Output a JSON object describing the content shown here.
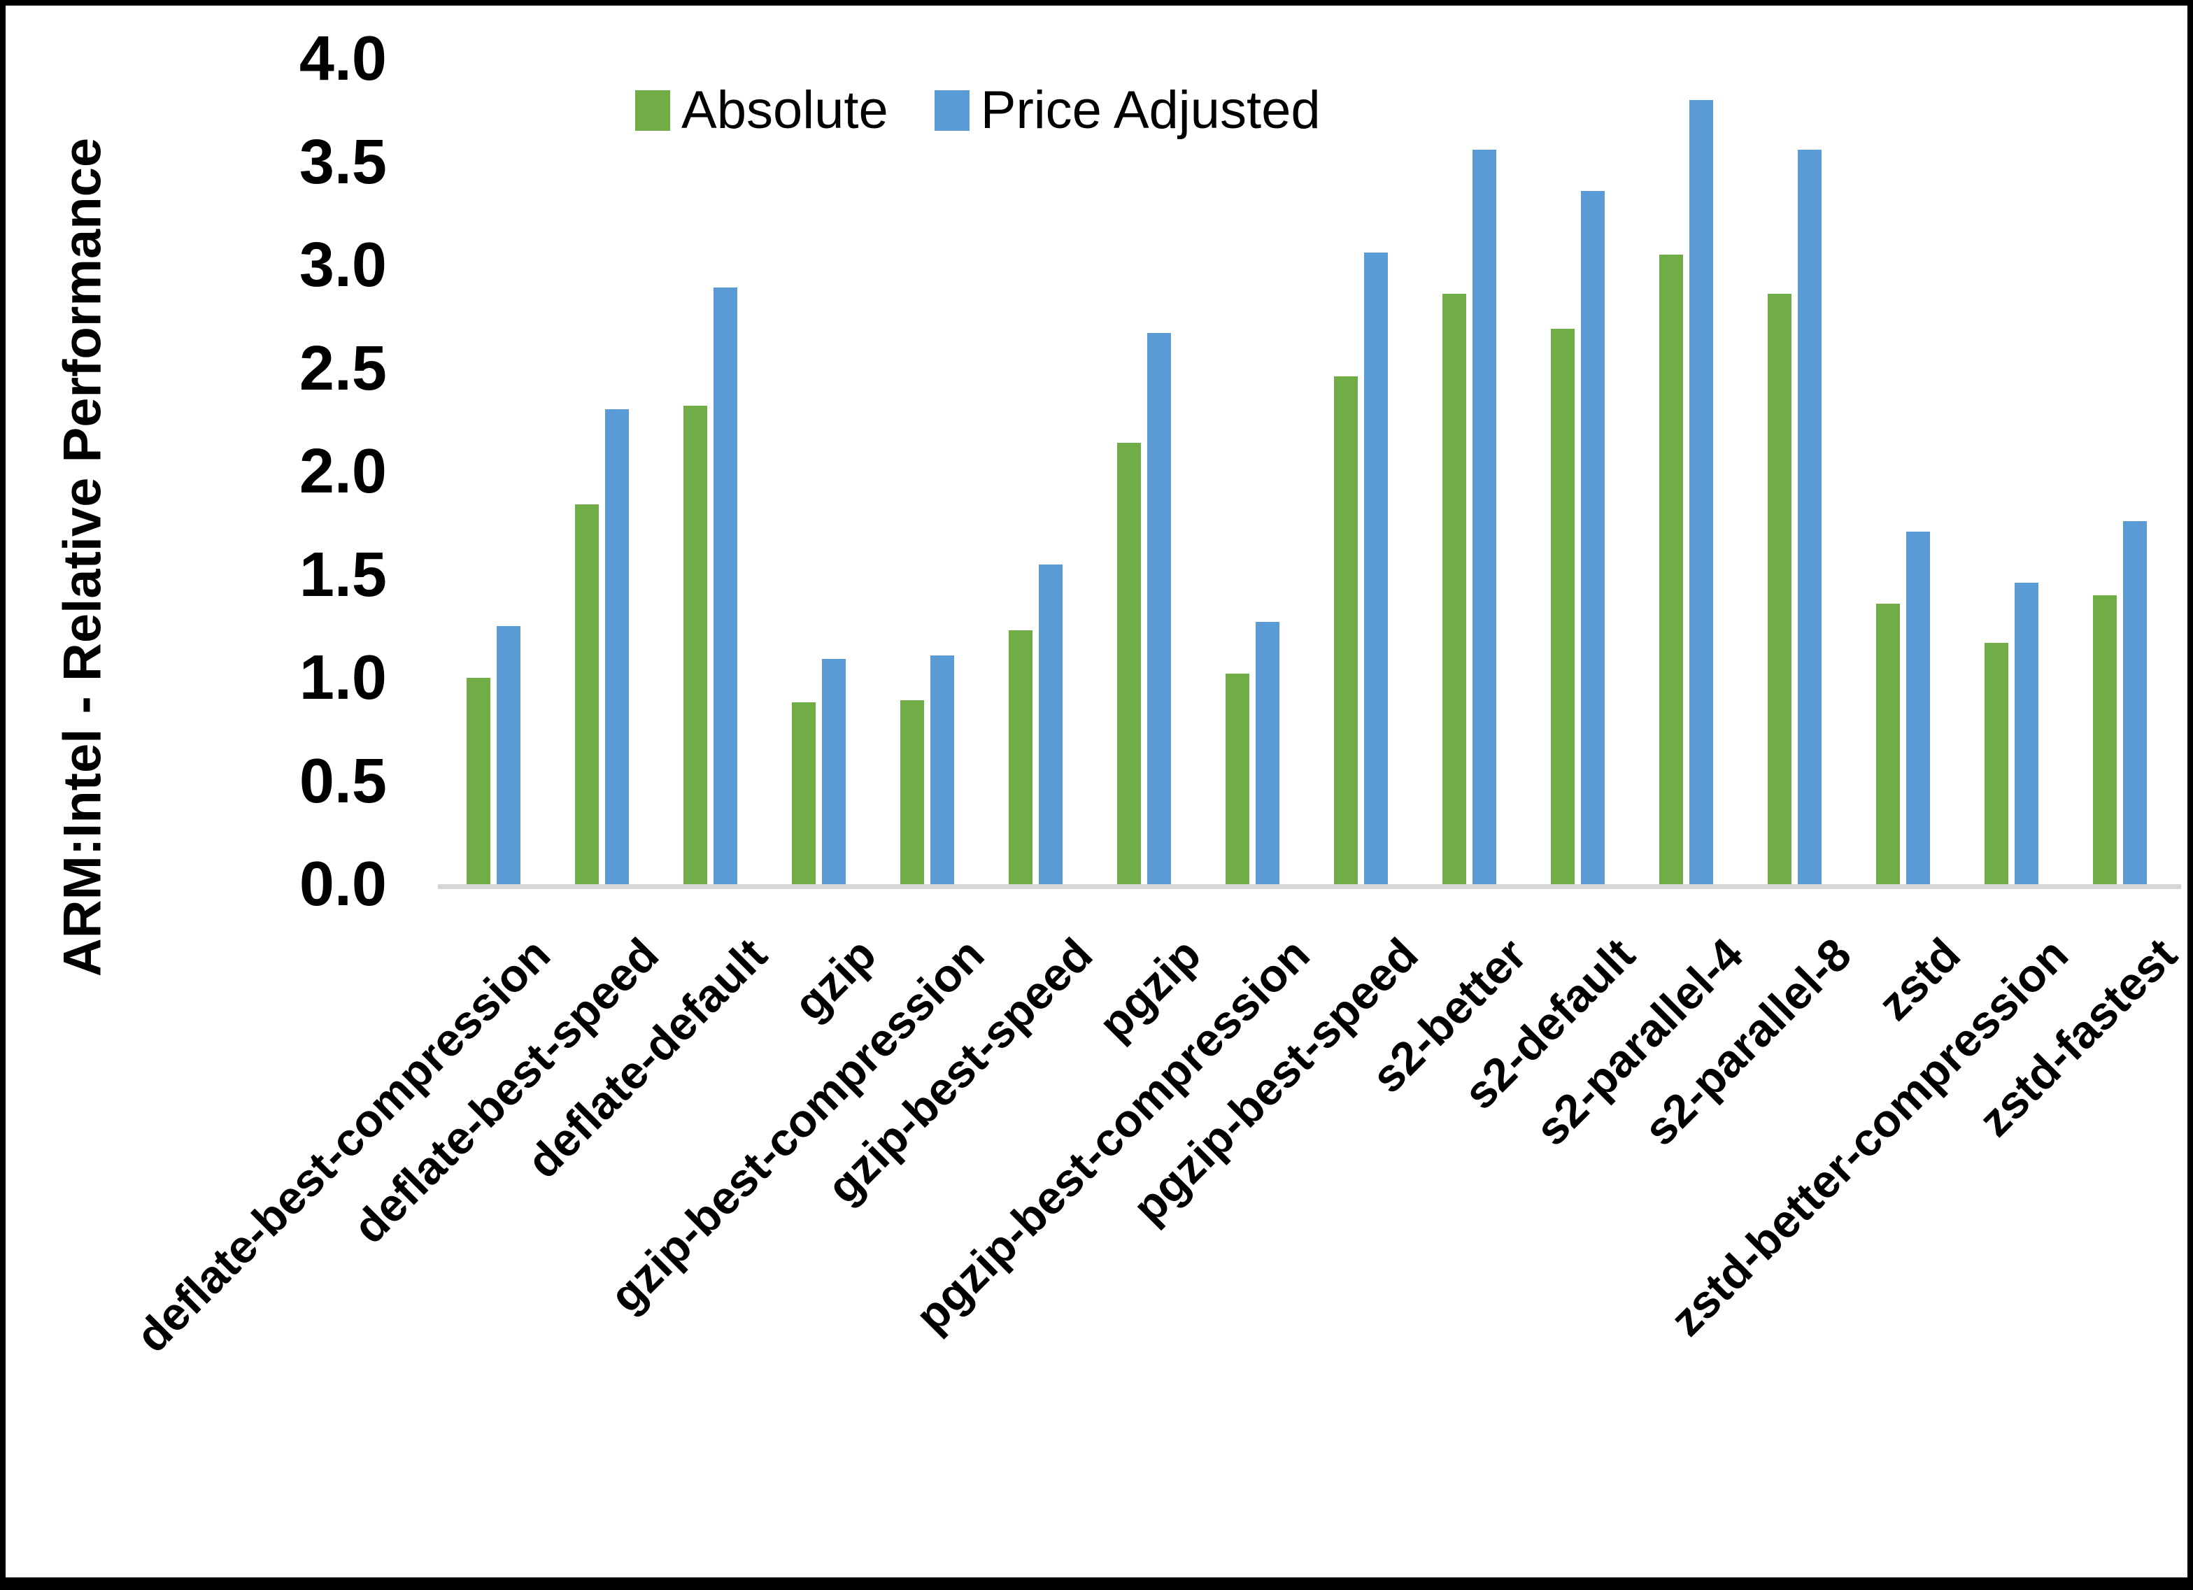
{
  "chart_data": {
    "type": "bar",
    "title": "",
    "xlabel": "",
    "ylabel": "ARM:Intel - Relative Performance",
    "ylim": [
      0.0,
      4.0
    ],
    "ytick_step": 0.5,
    "yticks": [
      "4.0",
      "3.5",
      "3.0",
      "2.5",
      "2.0",
      "1.5",
      "1.0",
      "0.5",
      "0.0"
    ],
    "grid": false,
    "legend_position": "top-center",
    "categories": [
      "deflate-best-compression",
      "deflate-best-speed",
      "deflate-default",
      "gzip",
      "gzip-best-compression",
      "gzip-best-speed",
      "pgzip",
      "pgzip-best-compression",
      "pgzip-best-speed",
      "s2-better",
      "s2-default",
      "s2-parallel-4",
      "s2-parallel-8",
      "zstd",
      "zstd-better-compression",
      "zstd-fastest"
    ],
    "series": [
      {
        "name": "Absolute",
        "color": "#70AD47",
        "values": [
          1.0,
          1.84,
          2.32,
          0.88,
          0.89,
          1.23,
          2.14,
          1.02,
          2.46,
          2.86,
          2.69,
          3.05,
          2.86,
          1.36,
          1.17,
          1.4
        ]
      },
      {
        "name": "Price Adjusted",
        "color": "#5B9BD5",
        "values": [
          1.25,
          2.3,
          2.89,
          1.09,
          1.11,
          1.55,
          2.67,
          1.27,
          3.06,
          3.56,
          3.36,
          3.8,
          3.56,
          1.71,
          1.46,
          1.76
        ]
      }
    ]
  },
  "colors": {
    "axis_line": "#d6d6d6",
    "text": "#000000",
    "background": "#ffffff",
    "border": "#000000"
  }
}
